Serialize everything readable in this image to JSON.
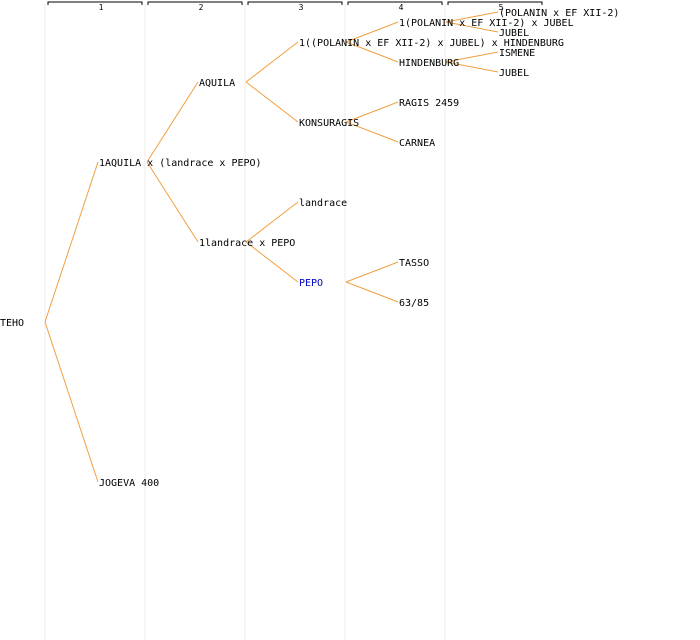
{
  "columns": [
    "1",
    "2",
    "3",
    "4",
    "5"
  ],
  "colors": {
    "edge": "#f0a040",
    "text": "#000000",
    "highlight": "#0000cc",
    "column_line": "#eeeeee"
  },
  "nodes": {
    "teho": "TEHO",
    "aquila_cross": "1AQUILA x (landrace x PEPO)",
    "jogeva": "JOGEVA 400",
    "aquila": "AQUILA",
    "landrace_pepo": "1landrace x PEPO",
    "polanin_hindenburg": "1((POLANIN x EF XII-2) x JUBEL) x HINDENBURG",
    "konsuragis": "KONSURAGIS",
    "landrace": "landrace",
    "pepo": "PEPO",
    "polanin_jubel": "1(POLANIN x EF XII-2) x JUBEL",
    "hindenburg": "HINDENBURG",
    "ragis": "RAGIS 2459",
    "carnea": "CARNEA",
    "tasso": "TASSO",
    "n6385": "63/85",
    "polanin_ef": "(POLANIN x EF XII-2)",
    "jubel_a": "JUBEL",
    "ismene": "ISMENE",
    "jubel_b": "JUBEL"
  }
}
